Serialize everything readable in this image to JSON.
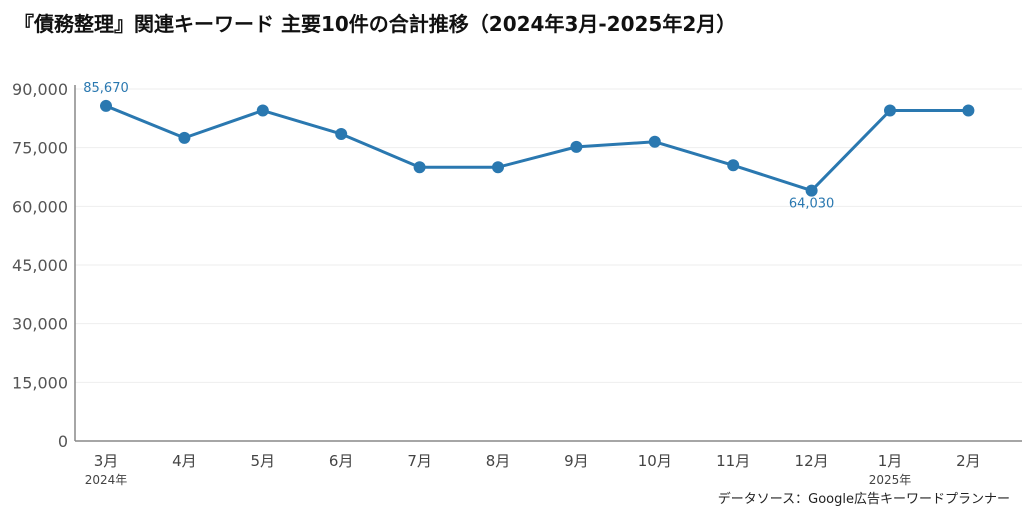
{
  "chart_data": {
    "type": "line",
    "title": "『債務整理』関連キーワード 主要10件の合計推移（2024年3月-2025年2月）",
    "source": "データソース：Google広告キーワードプランナー",
    "categories": [
      "3月",
      "4月",
      "5月",
      "6月",
      "7月",
      "8月",
      "9月",
      "10月",
      "11月",
      "12月",
      "1月",
      "2月"
    ],
    "category_sublabels": [
      "2024年",
      "",
      "",
      "",
      "",
      "",
      "",
      "",
      "",
      "",
      "2025年",
      ""
    ],
    "series": [
      {
        "values": [
          85670,
          77500,
          84500,
          78500,
          70000,
          70000,
          75200,
          76500,
          70500,
          64030,
          84500,
          84500
        ]
      }
    ],
    "data_labels": [
      {
        "index": 0,
        "text": "85,670",
        "position": "above"
      },
      {
        "index": 9,
        "text": "64,030",
        "position": "below"
      }
    ],
    "ylim": [
      0,
      90000
    ],
    "yticks": [
      0,
      15000,
      30000,
      45000,
      60000,
      75000,
      90000
    ],
    "ytick_labels": [
      "0",
      "15,000",
      "30,000",
      "45,000",
      "60,000",
      "75,000",
      "90,000"
    ],
    "xlabel": "",
    "ylabel": "",
    "grid": true,
    "colors": {
      "line": "#2a78b0",
      "grid": "#eeeeee",
      "axis": "#888888"
    }
  }
}
